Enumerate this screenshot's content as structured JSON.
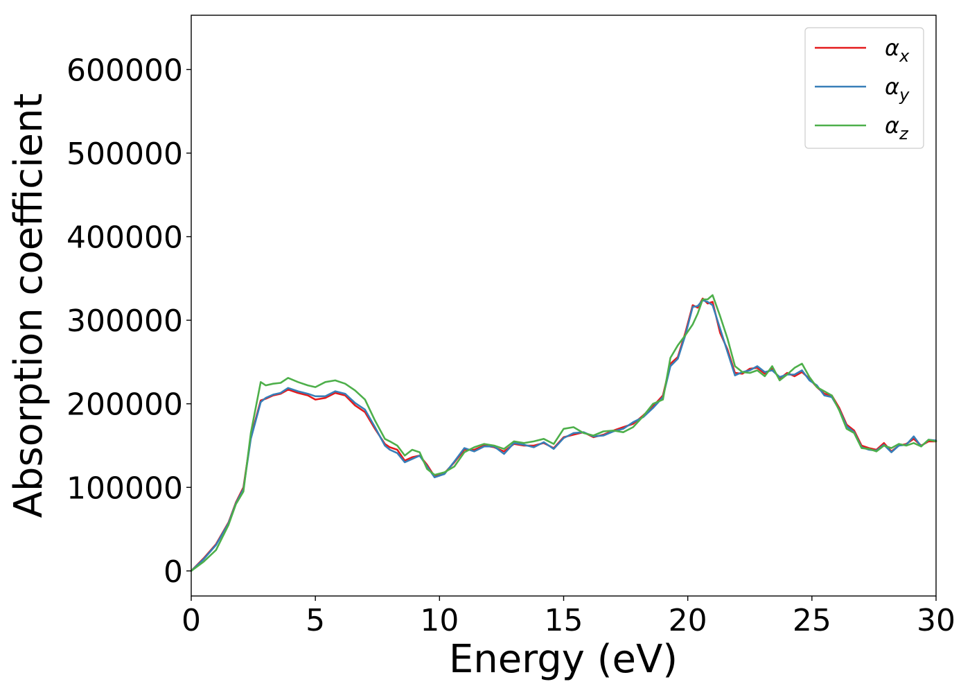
{
  "chart_data": {
    "type": "line",
    "xlabel": "Energy (eV)",
    "ylabel": "Absorption coefficient",
    "xlim": [
      0,
      30
    ],
    "ylim": [
      -30000,
      665000
    ],
    "xticks": [
      0,
      5,
      10,
      15,
      20,
      25,
      30
    ],
    "xtick_labels": [
      "0",
      "5",
      "10",
      "15",
      "20",
      "25",
      "30"
    ],
    "yticks": [
      0,
      100000,
      200000,
      300000,
      400000,
      500000,
      600000
    ],
    "ytick_labels": [
      "0",
      "100000",
      "200000",
      "300000",
      "400000",
      "500000",
      "600000"
    ],
    "grid": false,
    "legend_position": "top-right",
    "series": [
      {
        "name": "αx",
        "legend_symbol": "α",
        "legend_subscript": "x",
        "color": "#e41a1c",
        "x": [
          0,
          0.5,
          1.0,
          1.5,
          1.8,
          2.1,
          2.4,
          2.8,
          3.0,
          3.3,
          3.6,
          3.9,
          4.3,
          4.7,
          5.0,
          5.4,
          5.8,
          6.2,
          6.6,
          7.0,
          7.4,
          7.8,
          8.0,
          8.3,
          8.6,
          8.9,
          9.2,
          9.5,
          9.8,
          10.2,
          10.6,
          11.0,
          11.4,
          11.8,
          12.2,
          12.6,
          13.0,
          13.4,
          13.8,
          14.2,
          14.6,
          15.0,
          15.4,
          15.8,
          16.2,
          16.6,
          17.0,
          17.4,
          17.8,
          18.2,
          18.6,
          19.0,
          19.3,
          19.6,
          19.9,
          20.2,
          20.4,
          20.6,
          20.8,
          21.0,
          21.3,
          21.6,
          21.9,
          22.2,
          22.5,
          22.8,
          23.1,
          23.4,
          23.7,
          24.0,
          24.3,
          24.6,
          24.9,
          25.2,
          25.5,
          25.8,
          26.1,
          26.4,
          26.7,
          27.0,
          27.3,
          27.6,
          27.9,
          28.2,
          28.5,
          28.8,
          29.1,
          29.4,
          29.7,
          30.0
        ],
        "y": [
          0,
          15000,
          32000,
          58000,
          82000,
          100000,
          160000,
          204000,
          206000,
          210000,
          212000,
          217000,
          213000,
          210000,
          205000,
          207000,
          213000,
          210000,
          198000,
          190000,
          170000,
          152000,
          148000,
          145000,
          132000,
          136000,
          138000,
          127000,
          113000,
          117000,
          130000,
          145000,
          145000,
          150000,
          148000,
          143000,
          152000,
          150000,
          150000,
          153000,
          147000,
          160000,
          163000,
          166000,
          160000,
          163000,
          168000,
          172000,
          176000,
          186000,
          197000,
          210000,
          248000,
          256000,
          285000,
          318000,
          315000,
          326000,
          320000,
          322000,
          285000,
          265000,
          237000,
          236000,
          242000,
          243000,
          236000,
          242000,
          230000,
          237000,
          233000,
          238000,
          230000,
          220000,
          212000,
          210000,
          195000,
          175000,
          168000,
          150000,
          147000,
          145000,
          153000,
          143000,
          150000,
          152000,
          158000,
          150000,
          155000,
          155000
        ]
      },
      {
        "name": "αy",
        "legend_symbol": "α",
        "legend_subscript": "y",
        "color": "#377eb8",
        "x": [
          0,
          0.5,
          1.0,
          1.5,
          1.8,
          2.1,
          2.4,
          2.8,
          3.0,
          3.3,
          3.6,
          3.9,
          4.3,
          4.7,
          5.0,
          5.4,
          5.8,
          6.2,
          6.6,
          7.0,
          7.4,
          7.8,
          8.0,
          8.3,
          8.6,
          8.9,
          9.2,
          9.5,
          9.8,
          10.2,
          10.6,
          11.0,
          11.4,
          11.8,
          12.2,
          12.6,
          13.0,
          13.4,
          13.8,
          14.2,
          14.6,
          15.0,
          15.4,
          15.8,
          16.2,
          16.6,
          17.0,
          17.4,
          17.8,
          18.2,
          18.6,
          19.0,
          19.3,
          19.6,
          19.9,
          20.2,
          20.4,
          20.6,
          20.8,
          21.0,
          21.3,
          21.6,
          21.9,
          22.2,
          22.5,
          22.8,
          23.1,
          23.4,
          23.7,
          24.0,
          24.3,
          24.6,
          24.9,
          25.2,
          25.5,
          25.8,
          26.1,
          26.4,
          26.7,
          27.0,
          27.3,
          27.6,
          27.9,
          28.2,
          28.5,
          28.8,
          29.1,
          29.4,
          29.7,
          30.0
        ],
        "y": [
          0,
          14000,
          31000,
          57000,
          81000,
          98000,
          158000,
          202000,
          207000,
          211000,
          213000,
          219000,
          215000,
          212000,
          209000,
          209000,
          215000,
          212000,
          201000,
          193000,
          172000,
          150000,
          145000,
          141000,
          130000,
          134000,
          138000,
          125000,
          112000,
          116000,
          131000,
          147000,
          143000,
          149000,
          149000,
          140000,
          153000,
          151000,
          148000,
          154000,
          146000,
          159000,
          165000,
          166000,
          161000,
          162000,
          167000,
          170000,
          178000,
          184000,
          195000,
          208000,
          245000,
          254000,
          282000,
          316000,
          317000,
          324000,
          322000,
          318000,
          290000,
          262000,
          234000,
          238000,
          240000,
          245000,
          238000,
          240000,
          232000,
          235000,
          235000,
          240000,
          228000,
          222000,
          210000,
          208000,
          193000,
          173000,
          166000,
          148000,
          145000,
          144000,
          151000,
          142000,
          150000,
          151000,
          161000,
          149000,
          157000,
          156000
        ]
      },
      {
        "name": "αz",
        "legend_symbol": "α",
        "legend_subscript": "z",
        "color": "#4daf4a",
        "x": [
          0,
          0.5,
          1.0,
          1.5,
          1.8,
          2.1,
          2.4,
          2.8,
          3.0,
          3.3,
          3.6,
          3.9,
          4.3,
          4.7,
          5.0,
          5.4,
          5.8,
          6.2,
          6.6,
          7.0,
          7.4,
          7.8,
          8.0,
          8.3,
          8.6,
          8.9,
          9.2,
          9.5,
          9.8,
          10.2,
          10.6,
          11.0,
          11.4,
          11.8,
          12.2,
          12.6,
          13.0,
          13.4,
          13.8,
          14.2,
          14.6,
          15.0,
          15.4,
          15.8,
          16.2,
          16.6,
          17.0,
          17.4,
          17.8,
          18.2,
          18.6,
          19.0,
          19.3,
          19.6,
          19.9,
          20.2,
          20.4,
          20.6,
          20.8,
          21.0,
          21.3,
          21.6,
          21.9,
          22.2,
          22.5,
          22.8,
          23.1,
          23.4,
          23.7,
          24.0,
          24.3,
          24.6,
          24.9,
          25.2,
          25.5,
          25.8,
          26.1,
          26.4,
          26.7,
          27.0,
          27.3,
          27.6,
          27.9,
          28.2,
          28.5,
          28.8,
          29.1,
          29.4,
          29.7,
          30.0
        ],
        "y": [
          0,
          11000,
          25000,
          55000,
          80000,
          95000,
          165000,
          226000,
          222000,
          224000,
          225000,
          231000,
          226000,
          222000,
          220000,
          226000,
          228000,
          224000,
          216000,
          205000,
          180000,
          158000,
          155000,
          150000,
          138000,
          145000,
          142000,
          122000,
          115000,
          118000,
          125000,
          142000,
          148000,
          152000,
          150000,
          146000,
          155000,
          153000,
          155000,
          158000,
          152000,
          170000,
          172000,
          165000,
          162000,
          167000,
          168000,
          166000,
          172000,
          185000,
          200000,
          205000,
          255000,
          270000,
          282000,
          295000,
          308000,
          325000,
          325000,
          330000,
          305000,
          278000,
          245000,
          238000,
          237000,
          240000,
          233000,
          245000,
          228000,
          235000,
          243000,
          248000,
          232000,
          220000,
          215000,
          210000,
          192000,
          170000,
          165000,
          147000,
          146000,
          143000,
          150000,
          147000,
          152000,
          150000,
          153000,
          149000,
          157000,
          155000
        ]
      }
    ]
  }
}
